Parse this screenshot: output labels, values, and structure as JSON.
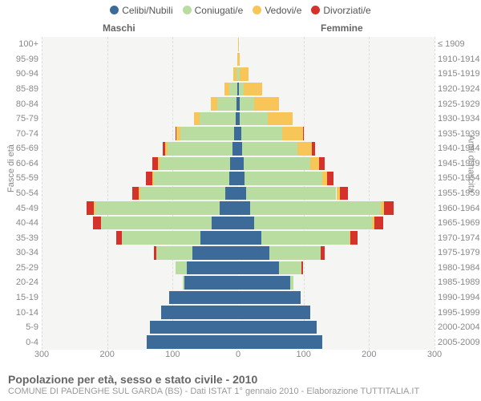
{
  "colors": {
    "celibi": "#3d6b99",
    "coniugati": "#b9dda0",
    "vedovi": "#f7c558",
    "divorziati": "#d4322b",
    "plot_bg": "#f5f5f3",
    "grid": "#dddddd"
  },
  "legend": [
    {
      "label": "Celibi/Nubili",
      "color_key": "celibi"
    },
    {
      "label": "Coniugati/e",
      "color_key": "coniugati"
    },
    {
      "label": "Vedovi/e",
      "color_key": "vedovi"
    },
    {
      "label": "Divorziati/e",
      "color_key": "divorziati"
    }
  ],
  "gender_labels": {
    "m": "Maschi",
    "f": "Femmine"
  },
  "axis": {
    "y_left_label": "Fasce di età",
    "y_right_label": "Anni di nascita",
    "xmax": 300,
    "xticks": [
      300,
      200,
      100,
      0,
      100,
      200,
      300
    ]
  },
  "age_bands": [
    "0-4",
    "5-9",
    "10-14",
    "15-19",
    "20-24",
    "25-29",
    "30-34",
    "35-39",
    "40-44",
    "45-49",
    "50-54",
    "55-59",
    "60-64",
    "65-69",
    "70-74",
    "75-79",
    "80-84",
    "85-89",
    "90-94",
    "95-99",
    "100+"
  ],
  "birth_bands": [
    "2005-2009",
    "2000-2004",
    "1995-1999",
    "1990-1994",
    "1985-1989",
    "1980-1984",
    "1975-1979",
    "1970-1974",
    "1965-1969",
    "1960-1964",
    "1955-1959",
    "1950-1954",
    "1945-1949",
    "1940-1944",
    "1935-1939",
    "1930-1934",
    "1925-1929",
    "1920-1924",
    "1915-1919",
    "1910-1914",
    "≤ 1909"
  ],
  "data": {
    "m": [
      {
        "cel": 140,
        "con": 0,
        "ved": 0,
        "div": 0
      },
      {
        "cel": 135,
        "con": 0,
        "ved": 0,
        "div": 0
      },
      {
        "cel": 118,
        "con": 0,
        "ved": 0,
        "div": 0
      },
      {
        "cel": 105,
        "con": 0,
        "ved": 0,
        "div": 0
      },
      {
        "cel": 82,
        "con": 2,
        "ved": 0,
        "div": 0
      },
      {
        "cel": 78,
        "con": 18,
        "ved": 0,
        "div": 0
      },
      {
        "cel": 70,
        "con": 55,
        "ved": 0,
        "div": 3
      },
      {
        "cel": 58,
        "con": 120,
        "ved": 0,
        "div": 8
      },
      {
        "cel": 40,
        "con": 170,
        "ved": 0,
        "div": 12
      },
      {
        "cel": 28,
        "con": 190,
        "ved": 2,
        "div": 12
      },
      {
        "cel": 20,
        "con": 130,
        "ved": 2,
        "div": 10
      },
      {
        "cel": 14,
        "con": 115,
        "ved": 2,
        "div": 10
      },
      {
        "cel": 12,
        "con": 108,
        "ved": 3,
        "div": 8
      },
      {
        "cel": 8,
        "con": 100,
        "ved": 4,
        "div": 3
      },
      {
        "cel": 6,
        "con": 82,
        "ved": 6,
        "div": 2
      },
      {
        "cel": 4,
        "con": 55,
        "ved": 8,
        "div": 0
      },
      {
        "cel": 2,
        "con": 30,
        "ved": 10,
        "div": 0
      },
      {
        "cel": 1,
        "con": 12,
        "ved": 8,
        "div": 0
      },
      {
        "cel": 0,
        "con": 3,
        "ved": 4,
        "div": 0
      },
      {
        "cel": 0,
        "con": 0,
        "ved": 1,
        "div": 0
      },
      {
        "cel": 0,
        "con": 0,
        "ved": 0,
        "div": 0
      }
    ],
    "f": [
      {
        "cel": 128,
        "con": 0,
        "ved": 0,
        "div": 0
      },
      {
        "cel": 120,
        "con": 0,
        "ved": 0,
        "div": 0
      },
      {
        "cel": 110,
        "con": 0,
        "ved": 0,
        "div": 0
      },
      {
        "cel": 95,
        "con": 0,
        "ved": 0,
        "div": 0
      },
      {
        "cel": 80,
        "con": 4,
        "ved": 0,
        "div": 0
      },
      {
        "cel": 62,
        "con": 35,
        "ved": 0,
        "div": 2
      },
      {
        "cel": 48,
        "con": 78,
        "ved": 0,
        "div": 6
      },
      {
        "cel": 35,
        "con": 135,
        "ved": 2,
        "div": 10
      },
      {
        "cel": 25,
        "con": 180,
        "ved": 3,
        "div": 14
      },
      {
        "cel": 18,
        "con": 200,
        "ved": 5,
        "div": 15
      },
      {
        "cel": 12,
        "con": 138,
        "ved": 6,
        "div": 12
      },
      {
        "cel": 10,
        "con": 118,
        "ved": 8,
        "div": 10
      },
      {
        "cel": 8,
        "con": 102,
        "ved": 14,
        "div": 8
      },
      {
        "cel": 6,
        "con": 85,
        "ved": 22,
        "div": 4
      },
      {
        "cel": 5,
        "con": 62,
        "ved": 32,
        "div": 2
      },
      {
        "cel": 3,
        "con": 42,
        "ved": 38,
        "div": 0
      },
      {
        "cel": 2,
        "con": 22,
        "ved": 38,
        "div": 0
      },
      {
        "cel": 1,
        "con": 8,
        "ved": 28,
        "div": 0
      },
      {
        "cel": 0,
        "con": 2,
        "ved": 14,
        "div": 0
      },
      {
        "cel": 0,
        "con": 0,
        "ved": 3,
        "div": 0
      },
      {
        "cel": 0,
        "con": 0,
        "ved": 1,
        "div": 0
      }
    ]
  },
  "footer": {
    "title": "Popolazione per età, sesso e stato civile - 2010",
    "subtitle": "COMUNE DI PADENGHE SUL GARDA (BS) - Dati ISTAT 1° gennaio 2010 - Elaborazione TUTTITALIA.IT"
  }
}
